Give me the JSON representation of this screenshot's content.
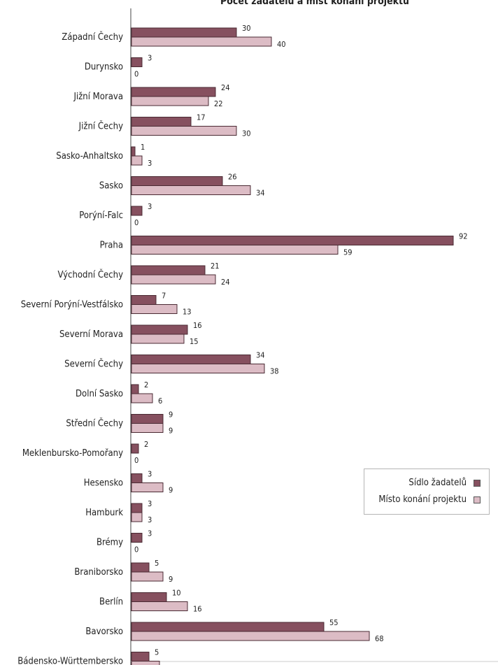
{
  "chart_data": {
    "type": "bar",
    "orientation": "horizontal",
    "title": "Počet žadatelů a míst konání projektů",
    "categories": [
      "Západní Čechy",
      "Durynsko",
      "Jižní Morava",
      "Jižní Čechy",
      "Sasko-Anhaltsko",
      "Sasko",
      "Porýní-Falc",
      "Praha",
      "Východní Čechy",
      "Severní Porýní-Vestfálsko",
      "Severní Morava",
      "Severní Čechy",
      "Dolní Sasko",
      "Střední Čechy",
      "Meklenbursko-Pomořany",
      "Hesensko",
      "Hamburk",
      "Brémy",
      "Braniborsko",
      "Berlín",
      "Bavorsko",
      "Bádensko-Württembersko"
    ],
    "series": [
      {
        "name": "Sídlo žadatelů",
        "color": "#86505f",
        "values": [
          30,
          3,
          24,
          17,
          1,
          26,
          3,
          92,
          21,
          7,
          16,
          34,
          2,
          9,
          2,
          3,
          3,
          3,
          5,
          10,
          55,
          5
        ]
      },
      {
        "name": "Místo konání projektu",
        "color": "#dcbcc5",
        "values": [
          40,
          0,
          22,
          30,
          3,
          34,
          0,
          59,
          24,
          13,
          15,
          38,
          6,
          9,
          0,
          9,
          3,
          0,
          9,
          16,
          68,
          8
        ]
      }
    ],
    "xlim": [
      0,
      100
    ],
    "grid": false,
    "legend_position": "bottom-right"
  }
}
